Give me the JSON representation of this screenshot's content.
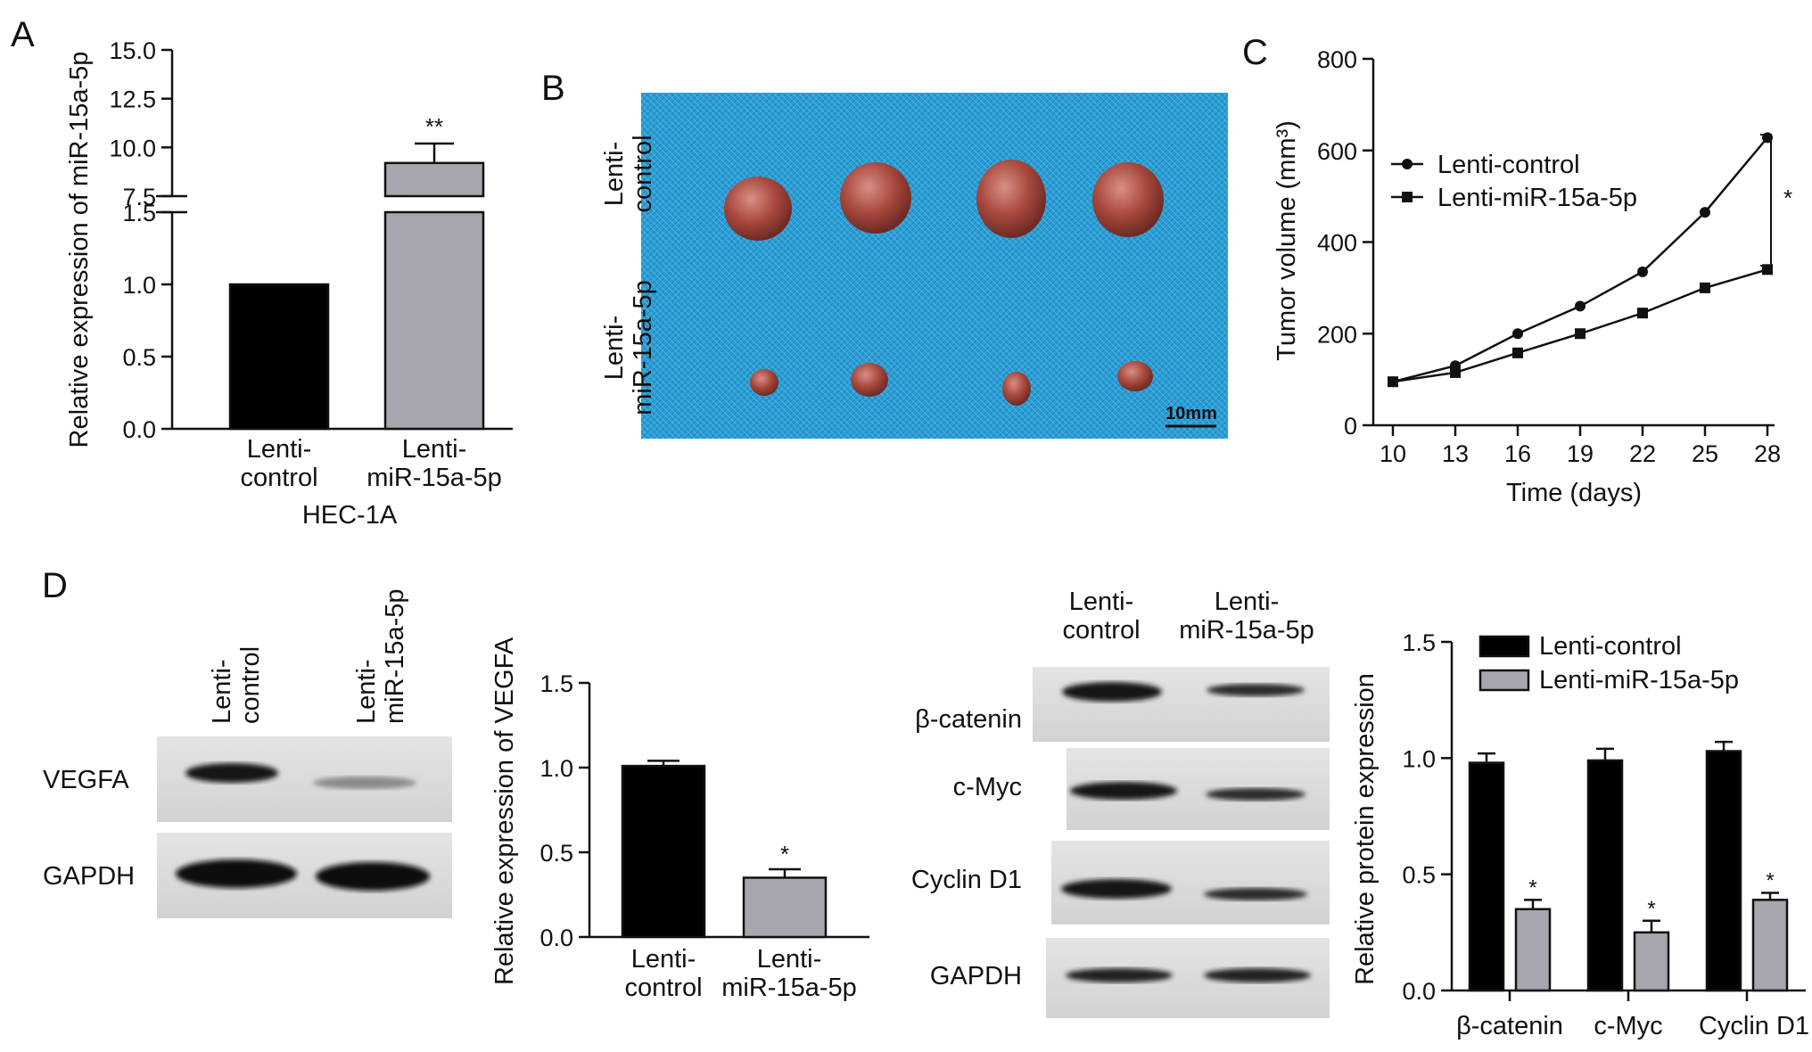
{
  "panels": {
    "A": {
      "label": "A",
      "ylabel": "Relative expression of miR-15a-5p",
      "xgroup": "HEC-1A",
      "lower_ticks": [
        "0.0",
        "0.5",
        "1.0",
        "1.5"
      ],
      "upper_ticks": [
        "7.5",
        "10.0",
        "12.5",
        "15.0"
      ],
      "cat_lines": [
        [
          "Lenti-",
          "control"
        ],
        [
          "Lenti-",
          "miR-15a-5p"
        ]
      ],
      "sig": "**"
    },
    "B": {
      "label": "B",
      "row_labels": [
        [
          "Lenti-",
          "control"
        ],
        [
          "Lenti-",
          "miR-15a-5p"
        ]
      ],
      "scale_bar": "10mm",
      "background": "#2a9fd6"
    },
    "C": {
      "label": "C",
      "ylabel": "Tumor volume (mm³)",
      "xlabel": "Time (days)",
      "yticks": [
        "0",
        "200",
        "400",
        "600",
        "800"
      ],
      "xticks": [
        "10",
        "13",
        "16",
        "19",
        "22",
        "25",
        "28"
      ],
      "legend": [
        "Lenti-control",
        "Lenti-miR-15a-5p"
      ],
      "sig": "*"
    },
    "D": {
      "label": "D",
      "blot1": {
        "lanes": [
          [
            "Lenti-",
            "control"
          ],
          [
            "Lenti-",
            "miR-15a-5p"
          ]
        ],
        "rows": [
          "VEGFA",
          "GAPDH"
        ]
      },
      "vegfa": {
        "ylabel": "Relative expression of VEGFA",
        "yticks": [
          "0.0",
          "0.5",
          "1.0",
          "1.5"
        ],
        "cat_lines": [
          [
            "Lenti-",
            "control"
          ],
          [
            "Lenti-",
            "miR-15a-5p"
          ]
        ],
        "sig": "*"
      },
      "blot2": {
        "lanes": [
          [
            "Lenti-",
            "control"
          ],
          [
            "Lenti-",
            "miR-15a-5p"
          ]
        ],
        "rows": [
          "β-catenin",
          "c-Myc",
          "Cyclin D1",
          "GAPDH"
        ]
      },
      "protein": {
        "ylabel": "Relative protein expression",
        "yticks": [
          "0.0",
          "0.5",
          "1.0",
          "1.5"
        ],
        "legend": [
          "Lenti-control",
          "Lenti-miR-15a-5p"
        ],
        "sig": [
          "*",
          "*",
          "*"
        ]
      }
    }
  },
  "chart_data": [
    {
      "id": "A",
      "type": "bar",
      "categories": [
        "Lenti-control",
        "Lenti-miR-15a-5p"
      ],
      "values": [
        1.0,
        9.2
      ],
      "errors": [
        0,
        1.0
      ],
      "ylabel": "Relative expression of miR-15a-5p",
      "xlabel": "HEC-1A",
      "ylim": [
        0,
        15
      ],
      "axis_break": [
        1.5,
        7.5
      ],
      "colors": [
        "#000000",
        "#a6a6ae"
      ]
    },
    {
      "id": "C",
      "type": "line",
      "x": [
        10,
        13,
        16,
        19,
        22,
        25,
        28
      ],
      "series": [
        {
          "name": "Lenti-control",
          "values": [
            95,
            130,
            200,
            260,
            335,
            465,
            628
          ],
          "marker": "circle"
        },
        {
          "name": "Lenti-miR-15a-5p",
          "values": [
            95,
            115,
            158,
            200,
            245,
            300,
            340
          ],
          "marker": "square"
        }
      ],
      "xlabel": "Time (days)",
      "ylabel": "Tumor volume (mm³)",
      "ylim": [
        0,
        800
      ],
      "legend": "top-left"
    },
    {
      "id": "D-VEGFA",
      "type": "bar",
      "categories": [
        "Lenti-control",
        "Lenti-miR-15a-5p"
      ],
      "values": [
        1.01,
        0.35
      ],
      "errors": [
        0.03,
        0.05
      ],
      "ylabel": "Relative expression of VEGFA",
      "ylim": [
        0,
        1.5
      ],
      "colors": [
        "#000000",
        "#a6a6ae"
      ]
    },
    {
      "id": "D-protein",
      "type": "bar",
      "categories": [
        "β-catenin",
        "c-Myc",
        "Cyclin D1"
      ],
      "series": [
        {
          "name": "Lenti-control",
          "values": [
            0.98,
            0.99,
            1.03
          ],
          "errors": [
            0.04,
            0.05,
            0.04
          ]
        },
        {
          "name": "Lenti-miR-15a-5p",
          "values": [
            0.35,
            0.25,
            0.39
          ],
          "errors": [
            0.04,
            0.05,
            0.03
          ]
        }
      ],
      "ylabel": "Relative protein expression",
      "ylim": [
        0,
        1.5
      ],
      "legend": "top-right",
      "colors": [
        "#000000",
        "#a6a6ae"
      ]
    }
  ]
}
